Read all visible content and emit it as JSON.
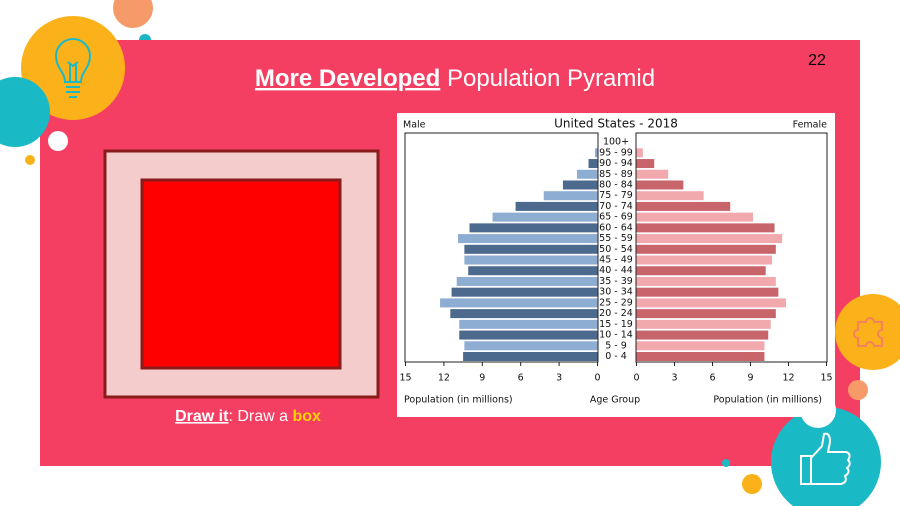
{
  "slide": {
    "page_number": "22",
    "title_bold": "More Developed",
    "title_rest": " Population Pyramid",
    "caption_link": "Draw it",
    "caption_text": ": Draw a ",
    "caption_highlight": "box"
  },
  "chart_data": {
    "type": "pyramid",
    "title": "United States - 2018",
    "left_label": "Male",
    "right_label": "Female",
    "xlabel": "Population (in millions)",
    "center_label": "Age Group",
    "categories": [
      "0 - 4",
      "5 - 9",
      "10 - 14",
      "15 - 19",
      "20 - 24",
      "25 - 29",
      "30 - 34",
      "35 - 39",
      "40 - 44",
      "45 - 49",
      "50 - 54",
      "55 - 59",
      "60 - 64",
      "65 - 69",
      "70 - 74",
      "75 - 79",
      "80 - 84",
      "85 - 89",
      "90 - 94",
      "95 - 99",
      "100+"
    ],
    "series": [
      {
        "name": "Male",
        "side": "left",
        "colors": [
          "#4b6a8e",
          "#8eadd2"
        ],
        "values": [
          10.5,
          10.4,
          10.8,
          10.8,
          11.5,
          12.3,
          11.4,
          11.0,
          10.1,
          10.4,
          10.4,
          10.9,
          10.0,
          8.2,
          6.4,
          4.2,
          2.7,
          1.6,
          0.7,
          0.2,
          0.0
        ]
      },
      {
        "name": "Female",
        "side": "right",
        "colors": [
          "#c8656b",
          "#f1a9ad"
        ],
        "values": [
          10.1,
          10.1,
          10.4,
          10.6,
          11.0,
          11.8,
          11.2,
          11.0,
          10.2,
          10.7,
          11.0,
          11.5,
          10.9,
          9.2,
          7.4,
          5.3,
          3.7,
          2.5,
          1.4,
          0.5,
          0.0
        ]
      }
    ],
    "xlim": [
      0,
      15
    ],
    "xticks": [
      0,
      3,
      6,
      9,
      12,
      15
    ]
  }
}
